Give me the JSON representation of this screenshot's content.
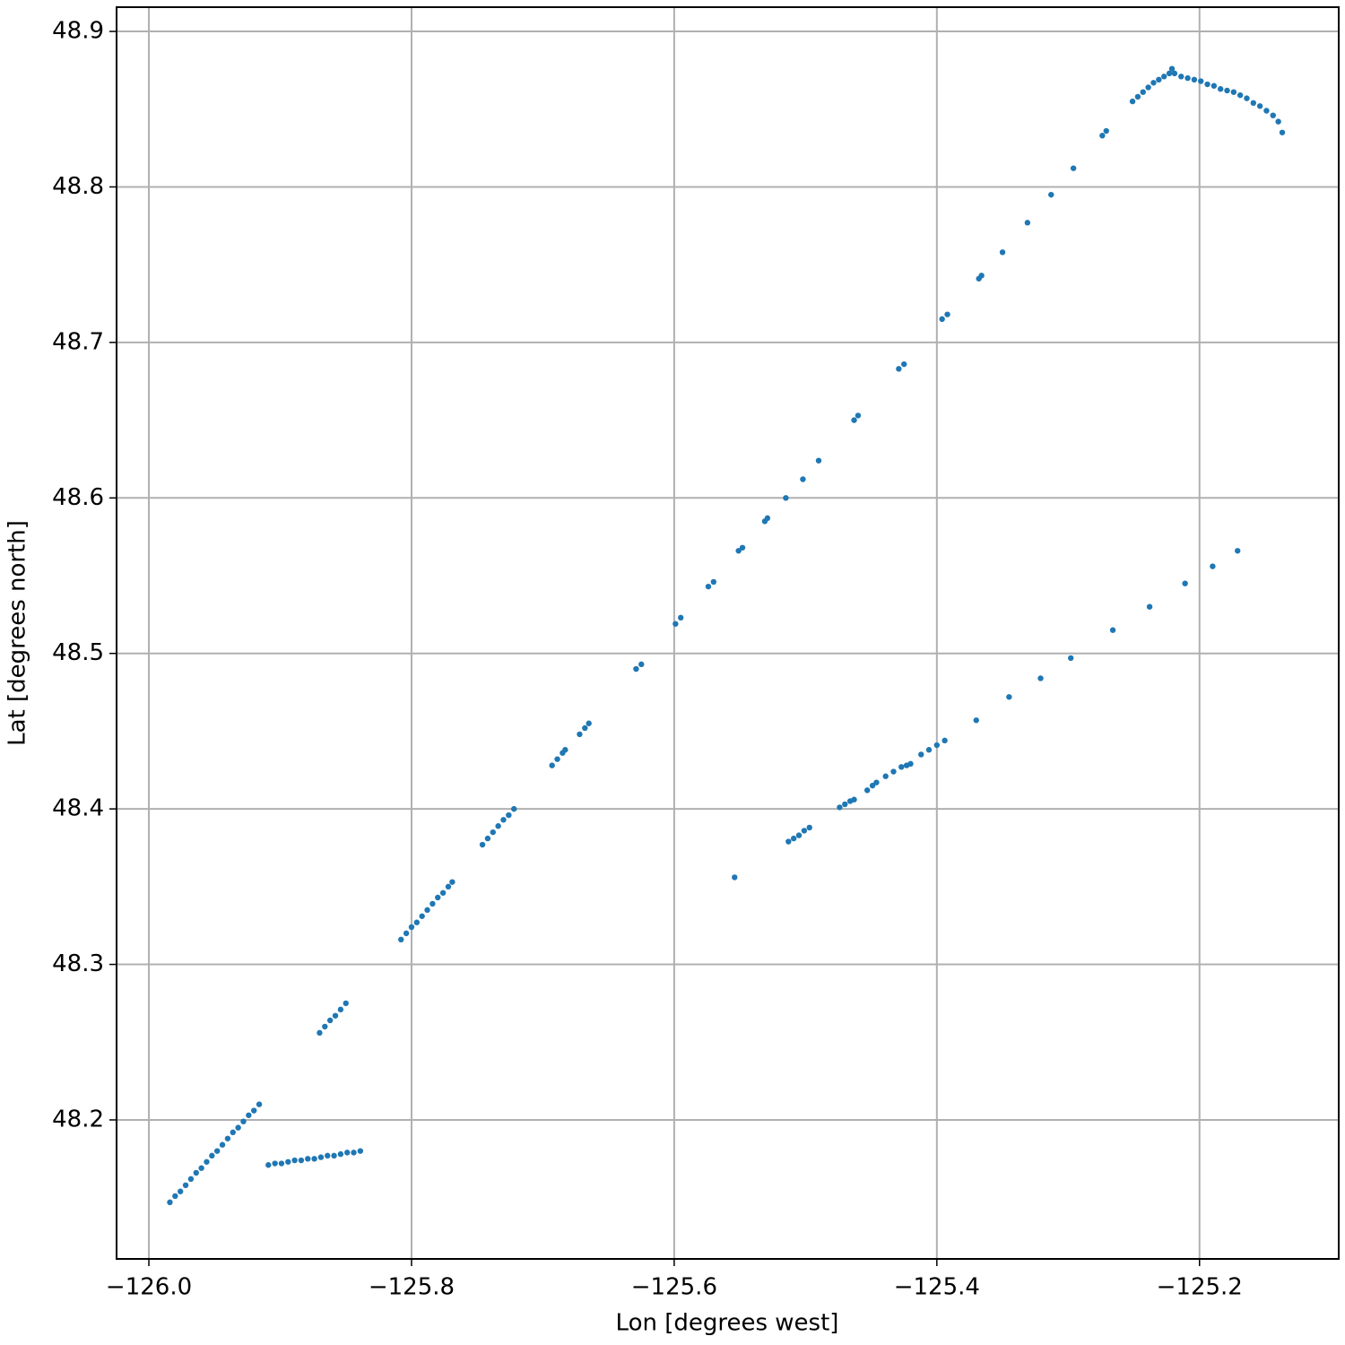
{
  "chart_data": {
    "type": "scatter",
    "xlabel": "Lon [degrees west]",
    "ylabel": "Lat [degrees north]",
    "color": "#1f77b4",
    "grid": true,
    "xlim": [
      -126.0246,
      -125.094
    ],
    "ylim": [
      48.1106,
      48.9156
    ],
    "xticks": [
      {
        "value": -126.0,
        "label": "−126.0"
      },
      {
        "value": -125.8,
        "label": "−125.8"
      },
      {
        "value": -125.6,
        "label": "−125.6"
      },
      {
        "value": -125.4,
        "label": "−125.4"
      },
      {
        "value": -125.2,
        "label": "−125.2"
      }
    ],
    "yticks": [
      48.2,
      48.3,
      48.4,
      48.5,
      48.6,
      48.7,
      48.8,
      48.9
    ],
    "x": [
      -125.984,
      -125.98,
      -125.976,
      -125.972,
      -125.968,
      -125.964,
      -125.96,
      -125.956,
      -125.952,
      -125.948,
      -125.944,
      -125.94,
      -125.936,
      -125.932,
      -125.928,
      -125.924,
      -125.92,
      -125.916,
      -125.909,
      -125.904,
      -125.899,
      -125.894,
      -125.889,
      -125.884,
      -125.879,
      -125.874,
      -125.869,
      -125.864,
      -125.859,
      -125.854,
      -125.849,
      -125.844,
      -125.839,
      -125.87,
      -125.866,
      -125.862,
      -125.858,
      -125.854,
      -125.85,
      -125.808,
      -125.804,
      -125.8,
      -125.796,
      -125.792,
      -125.788,
      -125.784,
      -125.78,
      -125.776,
      -125.772,
      -125.769,
      -125.746,
      -125.742,
      -125.738,
      -125.734,
      -125.73,
      -125.726,
      -125.722,
      -125.693,
      -125.689,
      -125.685,
      -125.683,
      -125.672,
      -125.668,
      -125.665,
      -125.629,
      -125.625,
      -125.599,
      -125.595,
      -125.574,
      -125.57,
      -125.551,
      -125.548,
      -125.531,
      -125.529,
      -125.515,
      -125.502,
      -125.49,
      -125.463,
      -125.46,
      -125.429,
      -125.425,
      -125.396,
      -125.392,
      -125.368,
      -125.366,
      -125.35,
      -125.331,
      -125.313,
      -125.296,
      -125.274,
      -125.271,
      -125.251,
      -125.247,
      -125.243,
      -125.239,
      -125.235,
      -125.231,
      -125.227,
      -125.223,
      -125.221,
      -125.219,
      -125.214,
      -125.209,
      -125.204,
      -125.199,
      -125.194,
      -125.189,
      -125.184,
      -125.179,
      -125.174,
      -125.169,
      -125.164,
      -125.159,
      -125.154,
      -125.149,
      -125.144,
      -125.14,
      -125.137,
      -125.554,
      -125.513,
      -125.509,
      -125.505,
      -125.501,
      -125.497,
      -125.474,
      -125.47,
      -125.466,
      -125.463,
      -125.453,
      -125.449,
      -125.446,
      -125.439,
      -125.433,
      -125.427,
      -125.423,
      -125.42,
      -125.412,
      -125.406,
      -125.4,
      -125.394,
      -125.37,
      -125.345,
      -125.321,
      -125.298,
      -125.266,
      -125.238,
      -125.211,
      -125.19,
      -125.171
    ],
    "y": [
      48.147,
      48.151,
      48.154,
      48.158,
      48.162,
      48.166,
      48.169,
      48.173,
      48.177,
      48.18,
      48.184,
      48.188,
      48.192,
      48.195,
      48.199,
      48.203,
      48.206,
      48.21,
      48.171,
      48.172,
      48.172,
      48.173,
      48.174,
      48.174,
      48.175,
      48.175,
      48.176,
      48.177,
      48.177,
      48.178,
      48.179,
      48.179,
      48.18,
      48.256,
      48.26,
      48.264,
      48.267,
      48.271,
      48.275,
      48.316,
      48.32,
      48.324,
      48.327,
      48.331,
      48.335,
      48.339,
      48.343,
      48.346,
      48.35,
      48.353,
      48.377,
      48.381,
      48.385,
      48.389,
      48.393,
      48.396,
      48.4,
      48.428,
      48.432,
      48.436,
      48.438,
      48.448,
      48.452,
      48.455,
      48.49,
      48.493,
      48.519,
      48.523,
      48.543,
      48.546,
      48.566,
      48.568,
      48.585,
      48.587,
      48.6,
      48.612,
      48.624,
      48.65,
      48.653,
      48.683,
      48.686,
      48.715,
      48.718,
      48.741,
      48.743,
      48.758,
      48.777,
      48.795,
      48.812,
      48.833,
      48.836,
      48.855,
      48.858,
      48.861,
      48.864,
      48.867,
      48.869,
      48.871,
      48.873,
      48.876,
      48.873,
      48.871,
      48.87,
      48.869,
      48.868,
      48.866,
      48.865,
      48.863,
      48.862,
      48.861,
      48.859,
      48.857,
      48.854,
      48.852,
      48.849,
      48.846,
      48.842,
      48.835,
      48.356,
      48.379,
      48.381,
      48.383,
      48.386,
      48.388,
      48.401,
      48.403,
      48.405,
      48.406,
      48.412,
      48.415,
      48.417,
      48.421,
      48.424,
      48.427,
      48.428,
      48.429,
      48.435,
      48.438,
      48.441,
      48.444,
      48.457,
      48.472,
      48.484,
      48.497,
      48.515,
      48.53,
      48.545,
      48.556,
      48.566
    ]
  }
}
